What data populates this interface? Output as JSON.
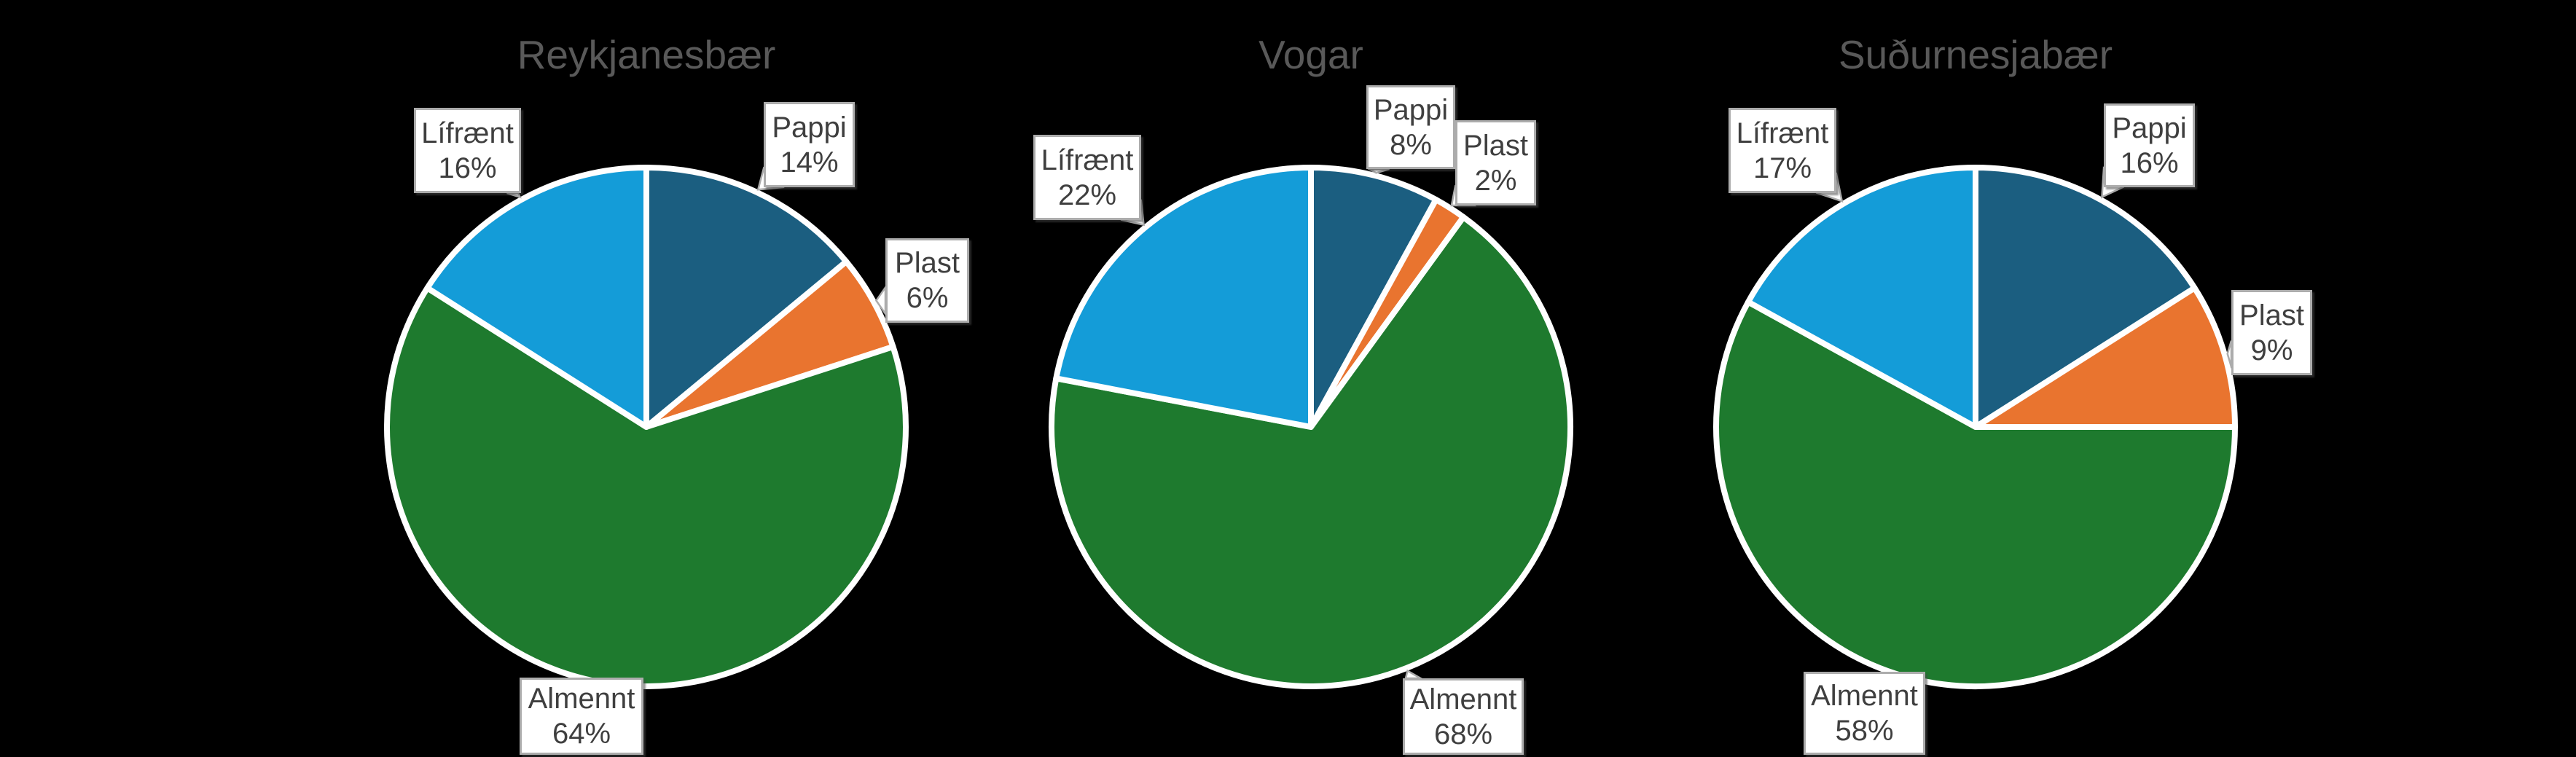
{
  "background": "#000000",
  "title_color": "#595959",
  "label_text_color": "#3F3F3F",
  "callout_fill": "#FFFFFF",
  "callout_border": "#ACACAC",
  "slice_stroke": "#FFFFFF",
  "chart_data": [
    {
      "type": "pie",
      "title": "Reykjanesbær",
      "legend": "none",
      "slices": [
        {
          "label": "Pappi",
          "value": 14,
          "pct_label": "14%",
          "color": "#1B5E80"
        },
        {
          "label": "Plast",
          "value": 6,
          "pct_label": "6%",
          "color": "#E9742F"
        },
        {
          "label": "Almennt",
          "value": 64,
          "pct_label": "64%",
          "color": "#1E7A2E"
        },
        {
          "label": "Lífrænt",
          "value": 16,
          "pct_label": "16%",
          "color": "#149CD8"
        }
      ]
    },
    {
      "type": "pie",
      "title": "Vogar",
      "legend": "none",
      "slices": [
        {
          "label": "Pappi",
          "value": 8,
          "pct_label": "8%",
          "color": "#1B5E80"
        },
        {
          "label": "Plast",
          "value": 2,
          "pct_label": "2%",
          "color": "#E9742F"
        },
        {
          "label": "Almennt",
          "value": 68,
          "pct_label": "68%",
          "color": "#1E7A2E"
        },
        {
          "label": "Lífrænt",
          "value": 22,
          "pct_label": "22%",
          "color": "#149CD8"
        }
      ]
    },
    {
      "type": "pie",
      "title": "Suðurnesjabær",
      "legend": "none",
      "slices": [
        {
          "label": "Pappi",
          "value": 16,
          "pct_label": "16%",
          "color": "#1B5E80"
        },
        {
          "label": "Plast",
          "value": 9,
          "pct_label": "9%",
          "color": "#E9742F"
        },
        {
          "label": "Almennt",
          "value": 58,
          "pct_label": "58%",
          "color": "#1E7A2E"
        },
        {
          "label": "Lífrænt",
          "value": 17,
          "pct_label": "17%",
          "color": "#149CD8"
        }
      ]
    }
  ]
}
